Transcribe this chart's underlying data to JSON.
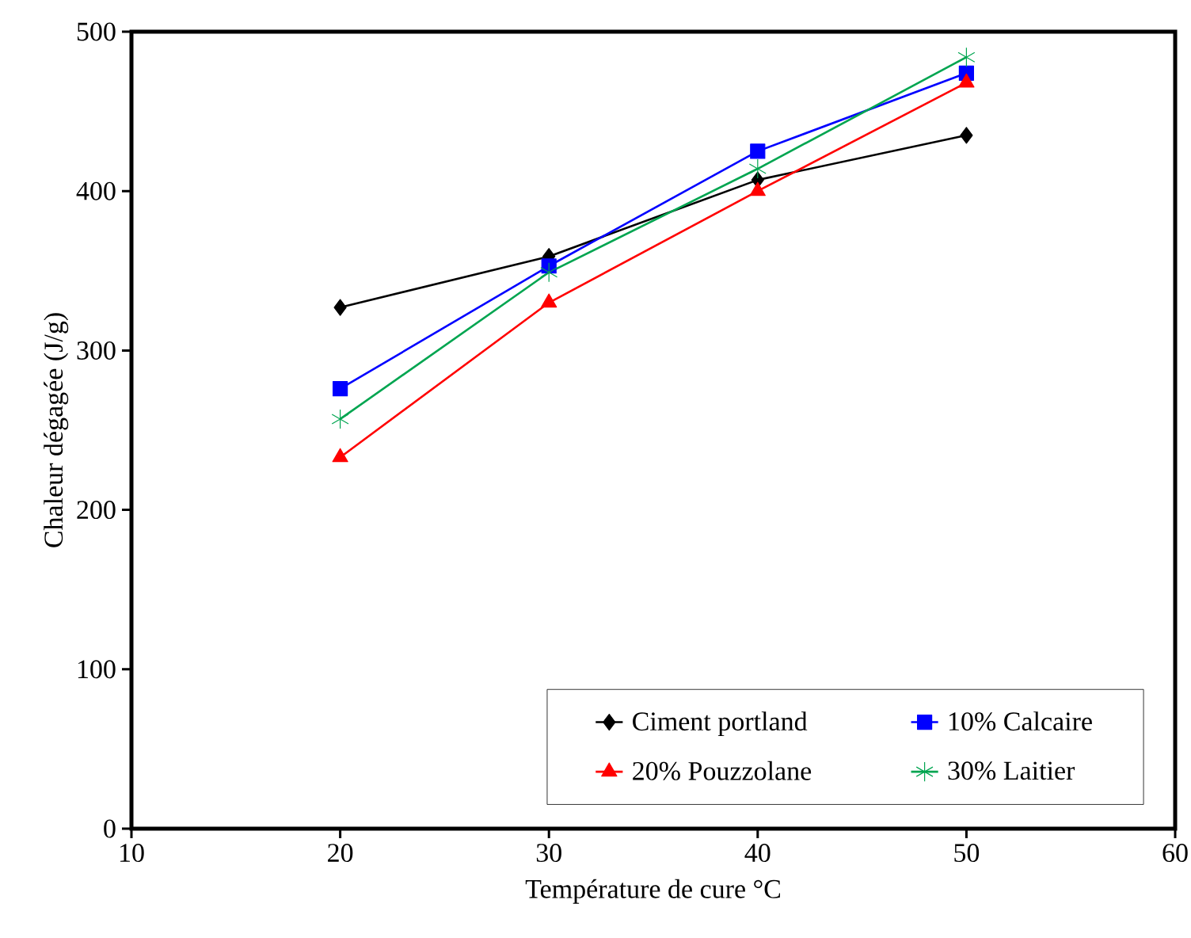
{
  "chart_data": {
    "type": "line",
    "xlabel": "Température de cure °C",
    "ylabel": "Chaleur  dégagée (J/g)",
    "x": [
      20,
      30,
      40,
      50
    ],
    "series": [
      {
        "name": "Ciment portland",
        "color": "#000000",
        "marker": "diamond",
        "values": [
          327,
          359,
          407,
          435
        ]
      },
      {
        "name": "10% Calcaire",
        "color": "#0000ff",
        "marker": "square",
        "values": [
          276,
          353,
          425,
          474
        ]
      },
      {
        "name": "20% Pouzzolane",
        "color": "#ff0000",
        "marker": "triangle",
        "values": [
          233,
          330,
          400,
          468
        ]
      },
      {
        "name": "30% Laitier",
        "color": "#00a550",
        "marker": "cross",
        "values": [
          257,
          349,
          414,
          484
        ]
      }
    ],
    "xlim": [
      10,
      60
    ],
    "ylim": [
      0,
      500
    ],
    "xticks": [
      10,
      20,
      30,
      40,
      50,
      60
    ],
    "yticks": [
      0,
      100,
      200,
      300,
      400,
      500
    ],
    "grid": false,
    "legend": "bottom right",
    "line_style": "solid"
  }
}
